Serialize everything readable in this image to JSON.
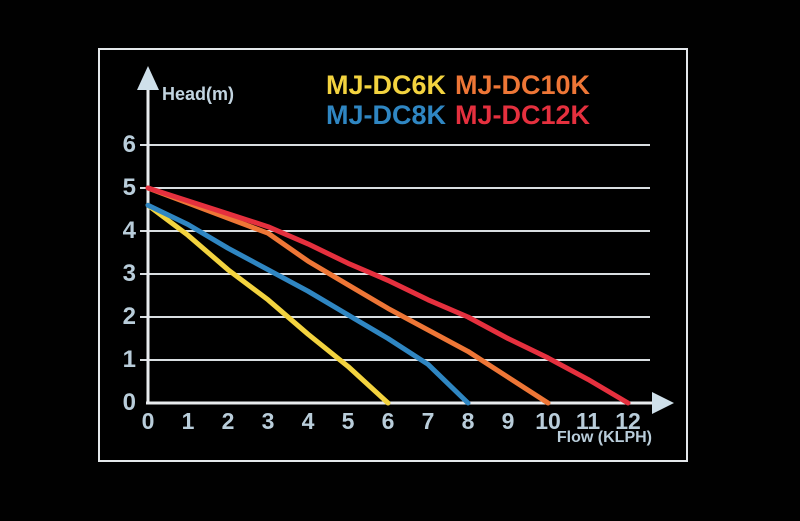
{
  "window": {
    "background": "#010101",
    "frame_border_color": "#e4e8eb"
  },
  "labels": {
    "head_axis": "Head(m)",
    "flow_axis": "Flow (KLPH)"
  },
  "colors": {
    "axis_line": "#e8ebee",
    "grid_line": "#d9dee1",
    "arrow": "#cfe0ea",
    "tick_text": "#b9cdda"
  },
  "chart_data": {
    "type": "line",
    "title": "",
    "xlabel": "Flow (KLPH)",
    "ylabel": "Head(m)",
    "xlim": [
      0,
      12
    ],
    "ylim": [
      0,
      6
    ],
    "x_ticks": [
      0,
      1,
      2,
      3,
      4,
      5,
      6,
      7,
      8,
      9,
      10,
      11,
      12
    ],
    "y_ticks": [
      0,
      1,
      2,
      3,
      4,
      5,
      6
    ],
    "grid": "horizontal-only",
    "legend_position": "top-center",
    "legend_rows": [
      [
        "MJ-DC6K",
        "MJ-DC10K"
      ],
      [
        "MJ-DC8K",
        "MJ-DC12K"
      ]
    ],
    "series": [
      {
        "name": "MJ-DC6K",
        "color": "#f3d33f",
        "max_head_m": 4.6,
        "max_flow_klph": 6,
        "points": [
          [
            0,
            4.6
          ],
          [
            1,
            3.9
          ],
          [
            2,
            3.1
          ],
          [
            3,
            2.4
          ],
          [
            4,
            1.6
          ],
          [
            5,
            0.85
          ],
          [
            6,
            0
          ]
        ]
      },
      {
        "name": "MJ-DC8K",
        "color": "#2f86c2",
        "max_head_m": 4.6,
        "max_flow_klph": 8,
        "points": [
          [
            0,
            4.6
          ],
          [
            1,
            4.15
          ],
          [
            2,
            3.6
          ],
          [
            3,
            3.1
          ],
          [
            4,
            2.6
          ],
          [
            5,
            2.05
          ],
          [
            6,
            1.5
          ],
          [
            7,
            0.9
          ],
          [
            8,
            0
          ]
        ]
      },
      {
        "name": "MJ-DC10K",
        "color": "#ee7636",
        "max_head_m": 5.0,
        "max_flow_klph": 10,
        "points": [
          [
            0,
            5
          ],
          [
            1,
            4.65
          ],
          [
            2,
            4.3
          ],
          [
            3,
            3.95
          ],
          [
            4,
            3.3
          ],
          [
            5,
            2.75
          ],
          [
            6,
            2.2
          ],
          [
            7,
            1.7
          ],
          [
            8,
            1.2
          ],
          [
            9,
            0.6
          ],
          [
            10,
            0
          ]
        ]
      },
      {
        "name": "MJ-DC12K",
        "color": "#e5303e",
        "max_head_m": 5.0,
        "max_flow_klph": 12,
        "points": [
          [
            0,
            5
          ],
          [
            1,
            4.7
          ],
          [
            2,
            4.4
          ],
          [
            3,
            4.1
          ],
          [
            4,
            3.7
          ],
          [
            5,
            3.25
          ],
          [
            6,
            2.85
          ],
          [
            7,
            2.4
          ],
          [
            8,
            2.0
          ],
          [
            9,
            1.5
          ],
          [
            10,
            1.05
          ],
          [
            11,
            0.55
          ],
          [
            12,
            0
          ]
        ]
      }
    ]
  }
}
